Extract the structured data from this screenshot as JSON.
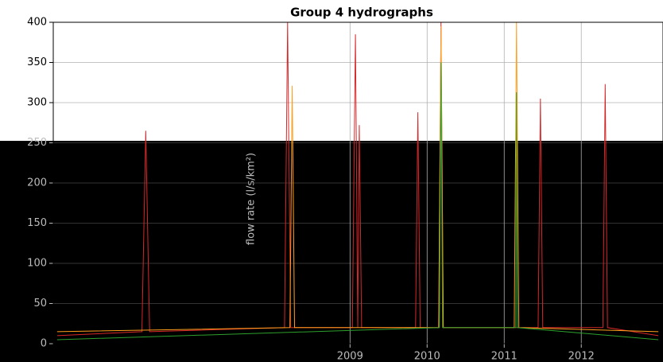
{
  "chart_data": {
    "type": "line",
    "title": "Group 4 hydrographs",
    "ylabel": "flow rate (l/s/km²)",
    "xlim": [
      2005.15,
      2013.06
    ],
    "xticks": [
      2009,
      2010,
      2011,
      2012
    ],
    "ylim": [
      0,
      400
    ],
    "yticks": [
      0,
      50,
      100,
      150,
      200,
      250,
      300,
      350,
      400
    ],
    "grid": true,
    "series": [
      {
        "color": "#d62728",
        "x": [
          2005.2,
          2006.3,
          2006.35,
          2006.4,
          2008.15,
          2008.19,
          2008.23,
          2009.03,
          2009.07,
          2009.1,
          2009.12,
          2009.15,
          2009.85,
          2009.88,
          2009.91,
          2010.15,
          2010.18,
          2010.21,
          2011.44,
          2011.47,
          2011.5,
          2012.28,
          2012.31,
          2012.34,
          2013.0
        ],
        "values": [
          10,
          15,
          265,
          15,
          20,
          400,
          20,
          20,
          385,
          20,
          272,
          20,
          20,
          288,
          20,
          20,
          400,
          20,
          20,
          305,
          20,
          20,
          323,
          20,
          10
        ]
      },
      {
        "color": "#ff9f1c",
        "x": [
          2005.2,
          2008.22,
          2008.25,
          2008.28,
          2010.15,
          2010.18,
          2010.21,
          2011.13,
          2011.16,
          2011.19,
          2013.0
        ],
        "values": [
          15,
          20,
          321,
          20,
          20,
          395,
          20,
          20,
          400,
          20,
          15
        ]
      },
      {
        "color": "#2ca02c",
        "x": [
          2005.2,
          2010.16,
          2010.18,
          2010.2,
          2011.15,
          2011.16,
          2011.17,
          2013.0
        ],
        "values": [
          5,
          20,
          350,
          20,
          20,
          313,
          20,
          5
        ]
      }
    ]
  }
}
